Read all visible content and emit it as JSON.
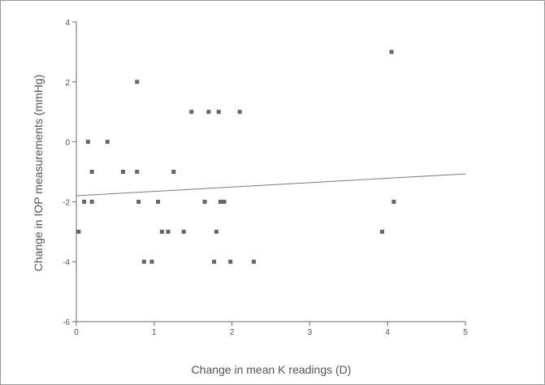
{
  "chart_data": {
    "type": "scatter",
    "title": "",
    "xlabel": "Change in mean K readings (D)",
    "ylabel": "Change in IOP measurements (mmHg)",
    "xlim": [
      0,
      5
    ],
    "ylim": [
      -6,
      4
    ],
    "x_ticks": [
      "0",
      "1",
      "2",
      "3",
      "4",
      "5"
    ],
    "y_ticks": [
      "-6",
      "-4",
      "-2",
      "0",
      "2",
      "4"
    ],
    "grid": false,
    "points": [
      {
        "x": 0.03,
        "y": -3
      },
      {
        "x": 0.1,
        "y": -2
      },
      {
        "x": 0.15,
        "y": 0
      },
      {
        "x": 0.2,
        "y": -1
      },
      {
        "x": 0.2,
        "y": -2
      },
      {
        "x": 0.4,
        "y": 0
      },
      {
        "x": 0.6,
        "y": -1
      },
      {
        "x": 0.78,
        "y": 2
      },
      {
        "x": 0.78,
        "y": -1
      },
      {
        "x": 0.8,
        "y": -2
      },
      {
        "x": 0.87,
        "y": -4
      },
      {
        "x": 0.97,
        "y": -4
      },
      {
        "x": 1.05,
        "y": -2
      },
      {
        "x": 1.1,
        "y": -3
      },
      {
        "x": 1.18,
        "y": -3
      },
      {
        "x": 1.25,
        "y": -1
      },
      {
        "x": 1.38,
        "y": -3
      },
      {
        "x": 1.48,
        "y": 1
      },
      {
        "x": 1.65,
        "y": -2
      },
      {
        "x": 1.7,
        "y": 1
      },
      {
        "x": 1.77,
        "y": -4
      },
      {
        "x": 1.8,
        "y": -3
      },
      {
        "x": 1.83,
        "y": 1
      },
      {
        "x": 1.85,
        "y": -2
      },
      {
        "x": 1.9,
        "y": -2
      },
      {
        "x": 1.98,
        "y": -4
      },
      {
        "x": 2.1,
        "y": 1
      },
      {
        "x": 2.28,
        "y": -4
      },
      {
        "x": 3.93,
        "y": -3
      },
      {
        "x": 4.05,
        "y": 3
      },
      {
        "x": 4.08,
        "y": -2
      }
    ],
    "trendline": {
      "x": [
        0,
        5
      ],
      "y": [
        -1.8,
        -1.07
      ]
    }
  }
}
